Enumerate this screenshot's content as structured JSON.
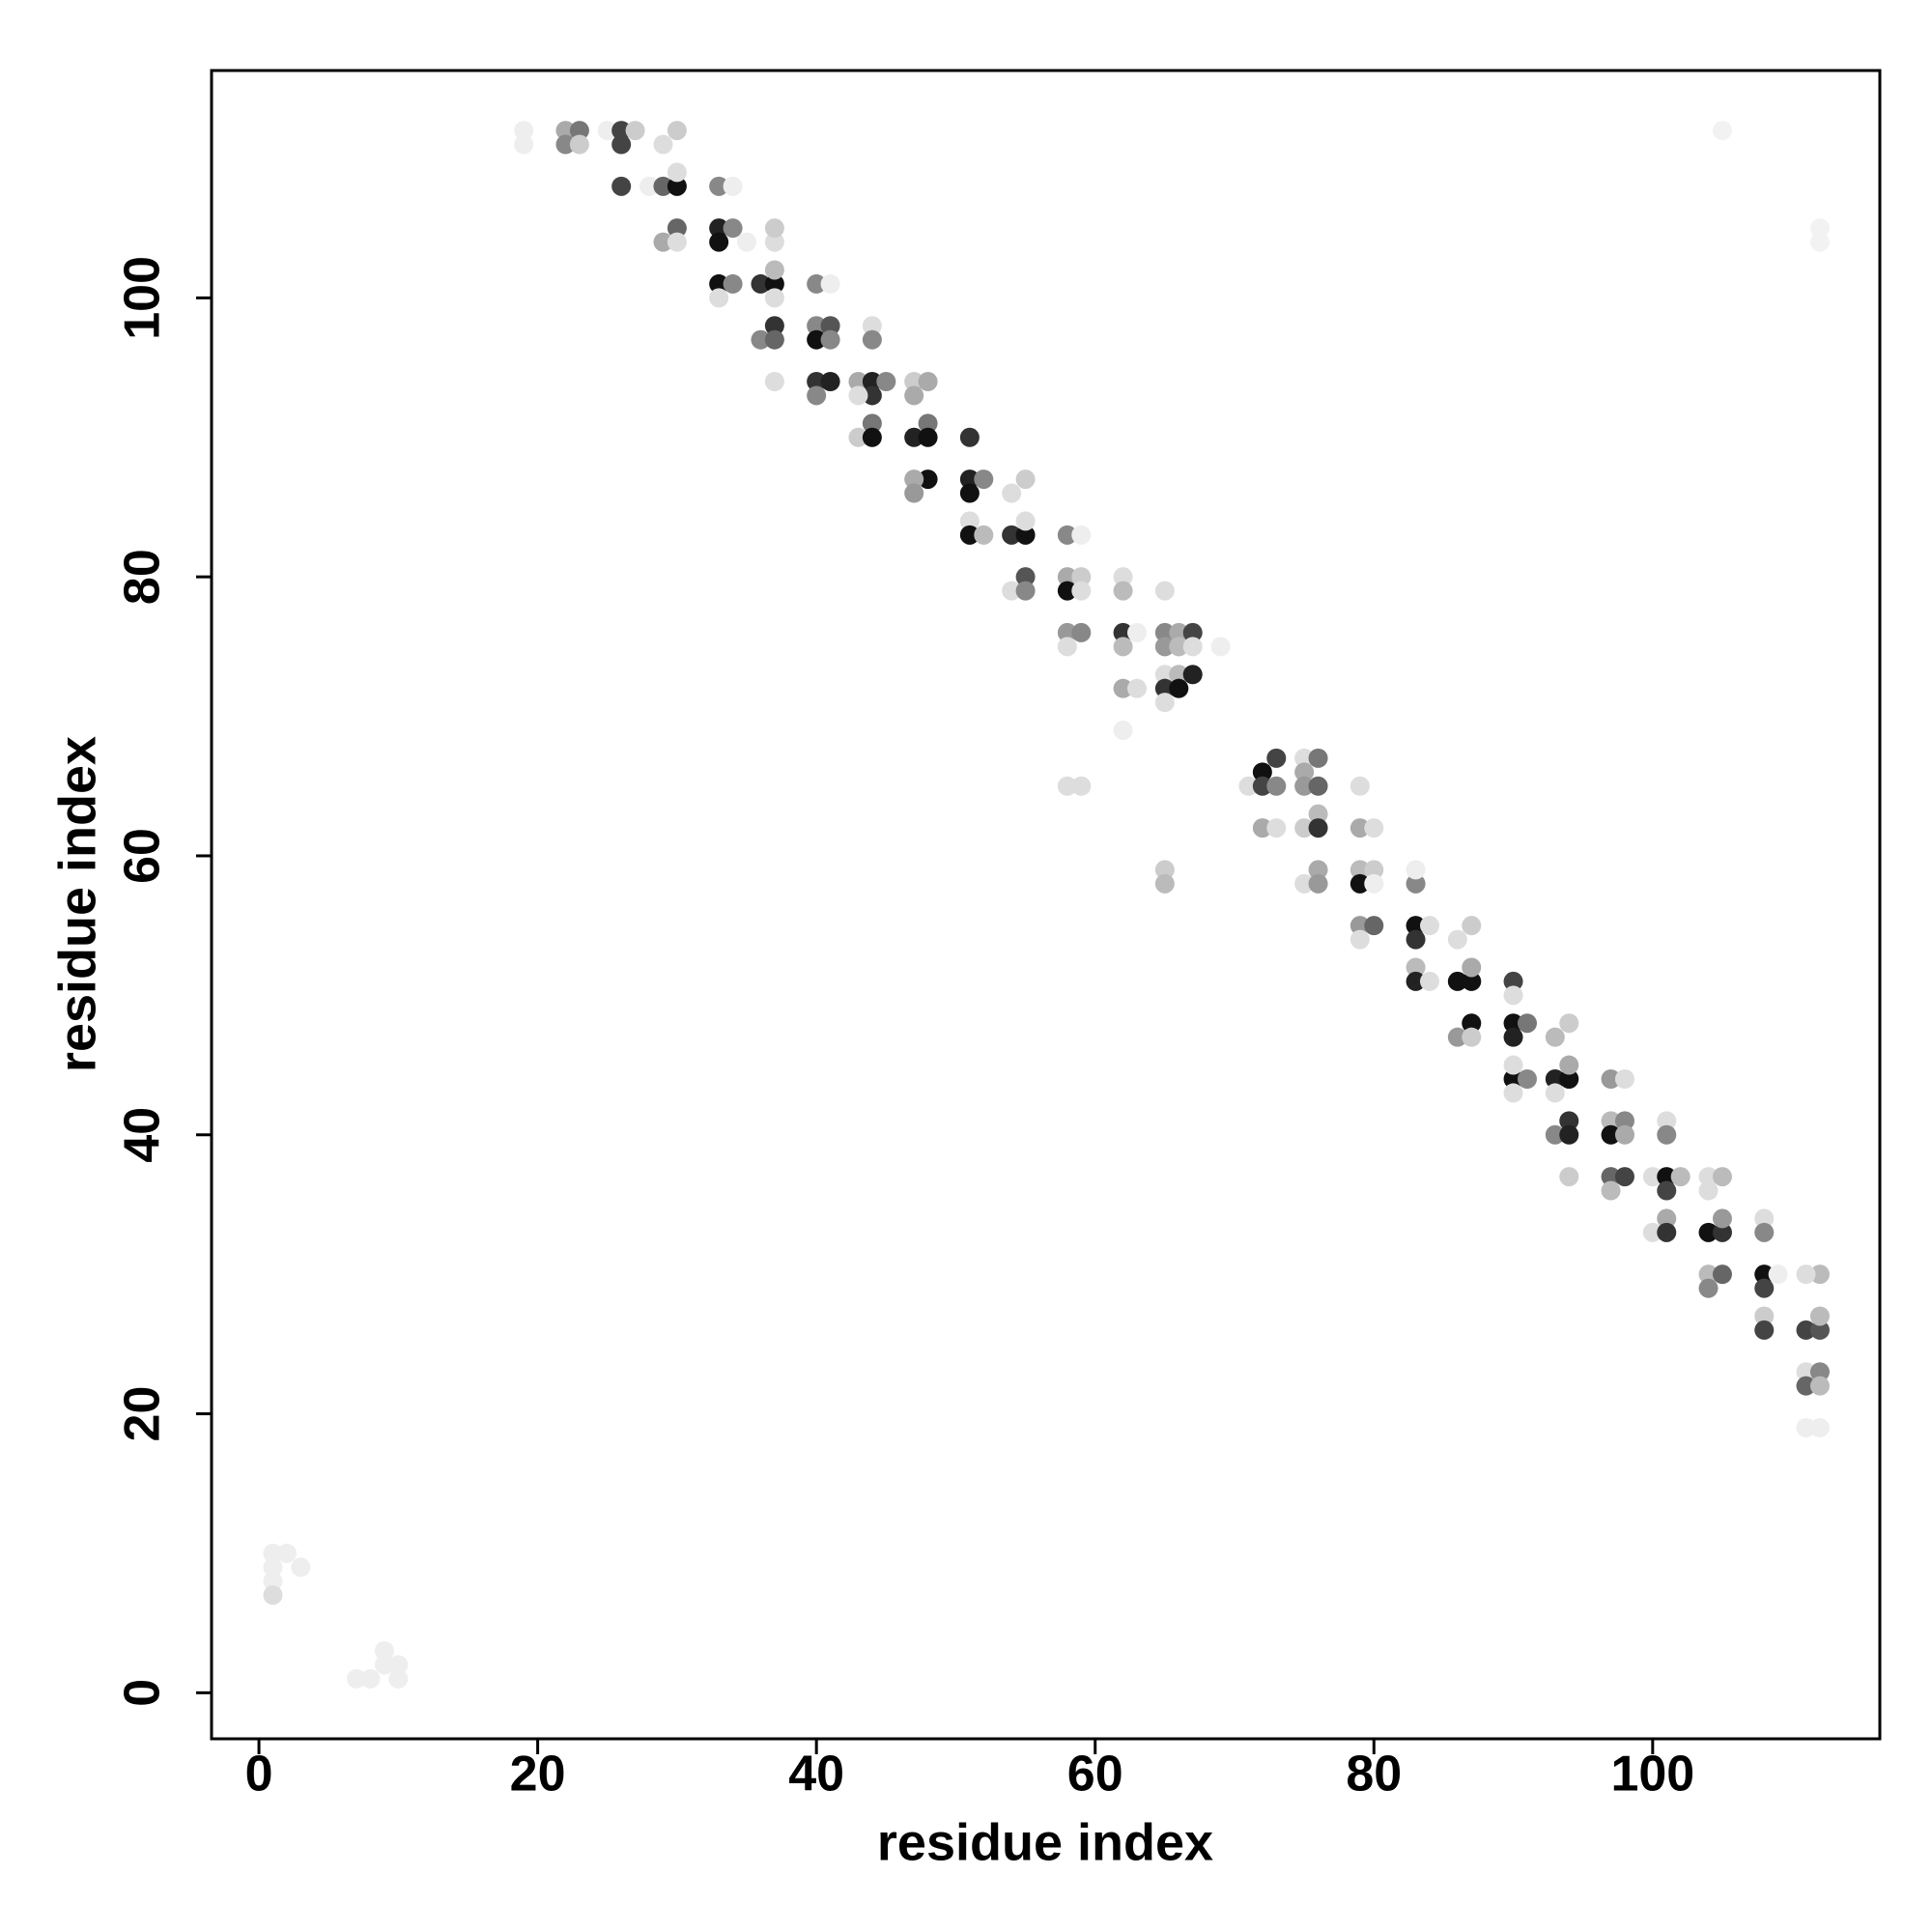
{
  "chart_data": {
    "type": "scatter",
    "x_label": "residue index",
    "y_label": "residue index",
    "xlim": [
      -3.4,
      116.3
    ],
    "ylim": [
      -3.3,
      116.3
    ],
    "xticks": [
      0,
      20,
      40,
      60,
      80,
      100
    ],
    "yticks": [
      0,
      20,
      40,
      60,
      80,
      100
    ],
    "grid": false,
    "x": [
      19,
      19,
      22,
      22,
      23,
      23,
      25,
      26,
      26,
      27,
      26,
      28,
      29,
      30,
      30,
      30,
      29,
      30,
      29,
      30,
      33,
      34,
      33,
      33,
      34,
      35,
      33,
      34,
      33,
      36,
      37,
      37,
      37,
      37,
      37,
      36,
      37,
      37,
      37,
      40,
      41,
      40,
      41,
      40,
      41,
      40,
      41,
      40,
      44,
      44,
      43,
      44,
      45,
      44,
      43,
      44,
      43,
      44,
      47,
      48,
      47,
      48,
      47,
      48,
      51,
      48,
      47,
      47,
      51,
      51,
      52,
      55,
      51,
      51,
      52,
      54,
      55,
      55,
      54,
      58,
      59,
      55,
      54,
      55,
      58,
      58,
      59,
      59,
      58,
      59,
      58,
      62,
      62,
      62,
      62,
      63,
      62,
      63,
      65,
      65,
      66,
      65,
      66,
      67,
      67,
      65,
      66,
      65,
      66,
      67,
      65,
      69,
      62,
      58,
      59,
      72,
      73,
      71,
      72,
      73,
      72,
      73,
      75,
      75,
      76,
      75,
      76,
      76,
      75,
      76,
      79,
      79,
      80,
      75,
      76,
      76,
      79,
      80,
      79,
      80,
      65,
      65,
      79,
      80,
      79,
      83,
      83,
      83,
      83,
      84,
      83,
      83,
      84,
      87,
      86,
      86,
      87,
      87,
      86,
      87,
      87,
      90,
      90,
      90,
      90,
      91,
      90,
      91,
      90,
      90,
      93,
      94,
      93,
      94,
      94,
      93,
      93,
      94,
      94,
      94,
      97,
      98,
      97,
      98,
      97,
      98,
      97,
      98,
      97,
      101,
      101,
      100,
      101,
      101,
      102,
      101,
      100,
      101,
      104,
      105,
      104,
      104,
      105,
      105,
      104,
      104,
      105,
      108,
      108,
      108,
      108,
      109,
      108,
      108,
      112,
      111,
      111,
      112,
      112,
      111,
      112,
      111,
      112,
      111,
      112,
      1,
      1,
      1,
      1,
      2,
      3,
      7,
      8,
      9,
      9,
      10,
      10,
      105,
      112,
      112
    ],
    "values": [
      112,
      111,
      112,
      111,
      112,
      111,
      112,
      112,
      111,
      112,
      108,
      108,
      108,
      108,
      112,
      109,
      111,
      105,
      104,
      104,
      108,
      108,
      105,
      104,
      105,
      104,
      101,
      101,
      100,
      101,
      101,
      102,
      104,
      105,
      100,
      97,
      98,
      97,
      94,
      101,
      101,
      98,
      98,
      97,
      97,
      94,
      94,
      93,
      98,
      97,
      94,
      94,
      94,
      93,
      93,
      91,
      90,
      90,
      94,
      94,
      93,
      91,
      90,
      90,
      90,
      87,
      87,
      86,
      87,
      86,
      87,
      87,
      84,
      83,
      83,
      83,
      83,
      84,
      86,
      83,
      83,
      80,
      79,
      79,
      80,
      79,
      80,
      79,
      76,
      76,
      75,
      80,
      79,
      76,
      75,
      76,
      72,
      72,
      79,
      76,
      76,
      75,
      75,
      76,
      75,
      73,
      73,
      72,
      72,
      73,
      71,
      75,
      69,
      65,
      65,
      66,
      67,
      65,
      65,
      65,
      62,
      62,
      67,
      66,
      67,
      65,
      65,
      63,
      62,
      62,
      65,
      62,
      62,
      58,
      59,
      58,
      59,
      59,
      58,
      58,
      59,
      58,
      55,
      55,
      54,
      58,
      59,
      55,
      54,
      55,
      52,
      51,
      51,
      55,
      54,
      51,
      51,
      52,
      47,
      48,
      47,
      51,
      50,
      48,
      47,
      48,
      44,
      44,
      45,
      43,
      47,
      48,
      44,
      44,
      45,
      43,
      40,
      41,
      40,
      37,
      44,
      44,
      41,
      41,
      40,
      40,
      37,
      37,
      36,
      41,
      40,
      37,
      37,
      36,
      37,
      34,
      33,
      33,
      37,
      37,
      36,
      33,
      33,
      34,
      30,
      29,
      30,
      34,
      33,
      30,
      29,
      30,
      27,
      26,
      30,
      30,
      26,
      26,
      27,
      23,
      23,
      22,
      22,
      19,
      19,
      10,
      9,
      8,
      7,
      10,
      9,
      1,
      1,
      2,
      3,
      2,
      1,
      112,
      105,
      104
    ],
    "colors": [
      "#eee",
      "#eee",
      "#aaa",
      "#888",
      "#777",
      "#ccc",
      "#eee",
      "#444",
      "#444",
      "#ccc",
      "#444",
      "#eee",
      "#666",
      "#111",
      "#ccc",
      "#ddd",
      "#ddd",
      "#666",
      "#aaa",
      "#ddd",
      "#888",
      "#eee",
      "#222",
      "#111",
      "#888",
      "#eee",
      "#111",
      "#888",
      "#ddd",
      "#333",
      "#111",
      "#bbb",
      "#ddd",
      "#ccc",
      "#ddd",
      "#888",
      "#333",
      "#666",
      "#ddd",
      "#888",
      "#eee",
      "#888",
      "#555",
      "#111",
      "#888",
      "#333",
      "#222",
      "#888",
      "#ddd",
      "#888",
      "#aaa",
      "#222",
      "#888",
      "#333",
      "#ddd",
      "#777",
      "#ccc",
      "#111",
      "#ccc",
      "#aaa",
      "#aaa",
      "#777",
      "#222",
      "#111",
      "#333",
      "#111",
      "#aaa",
      "#999",
      "#222",
      "#111",
      "#888",
      "#ccc",
      "#ddd",
      "#111",
      "#bbb",
      "#333",
      "#111",
      "#ddd",
      "#ddd",
      "#888",
      "#eee",
      "#555",
      "#ddd",
      "#888",
      "#aaa",
      "#111",
      "#ccc",
      "#ddd",
      "#999",
      "#888",
      "#ddd",
      "#ddd",
      "#bbb",
      "#333",
      "#bbb",
      "#eee",
      "#aaa",
      "#ddd",
      "#ddd",
      "#888",
      "#aaa",
      "#999",
      "#bbb",
      "#444",
      "#ddd",
      "#ddd",
      "#bbb",
      "#333",
      "#111",
      "#222",
      "#ddd",
      "#eee",
      "#eee",
      "#ddd",
      "#ddd",
      "#111",
      "#444",
      "#ddd",
      "#444",
      "#888",
      "#aaa",
      "#ddd",
      "#ddd",
      "#aaa",
      "#777",
      "#999",
      "#666",
      "#bbb",
      "#ccc",
      "#333",
      "#ddd",
      "#aaa",
      "#ddd",
      "#ddd",
      "#aaa",
      "#999",
      "#bbb",
      "#ccc",
      "#111",
      "#eee",
      "#ccc",
      "#bbb",
      "#999",
      "#666",
      "#ddd",
      "#888",
      "#eee",
      "#111",
      "#333",
      "#ddd",
      "#bbb",
      "#222",
      "#ddd",
      "#ccc",
      "#ddd",
      "#111",
      "#111",
      "#aaa",
      "#999",
      "#111",
      "#ccc",
      "#444",
      "#ddd",
      "#111",
      "#222",
      "#777",
      "#111",
      "#888",
      "#ddd",
      "#ddd",
      "#bbb",
      "#ccc",
      "#222",
      "#111",
      "#aaa",
      "#ddd",
      "#888",
      "#333",
      "#222",
      "#ccc",
      "#999",
      "#ddd",
      "#bbb",
      "#888",
      "#111",
      "#aaa",
      "#666",
      "#444",
      "#bbb",
      "#ddd",
      "#888",
      "#ddd",
      "#111",
      "#444",
      "#bbb",
      "#aaa",
      "#ddd",
      "#333",
      "#ddd",
      "#bbb",
      "#ddd",
      "#111",
      "#333",
      "#999",
      "#bbb",
      "#888",
      "#666",
      "#ddd",
      "#888",
      "#111",
      "#444",
      "#eee",
      "#ccc",
      "#444",
      "#bbb",
      "#ddd",
      "#444",
      "#555",
      "#bbb",
      "#ddd",
      "#888",
      "#666",
      "#bbb",
      "#eee",
      "#eee",
      "#eee",
      "#eee",
      "#eee",
      "#ddd",
      "#eee",
      "#eee",
      "#eee",
      "#eee",
      "#eee",
      "#eee",
      "#eee",
      "#eee",
      "#f2f2f2",
      "#f2f2f2",
      "#f2f2f2"
    ]
  }
}
